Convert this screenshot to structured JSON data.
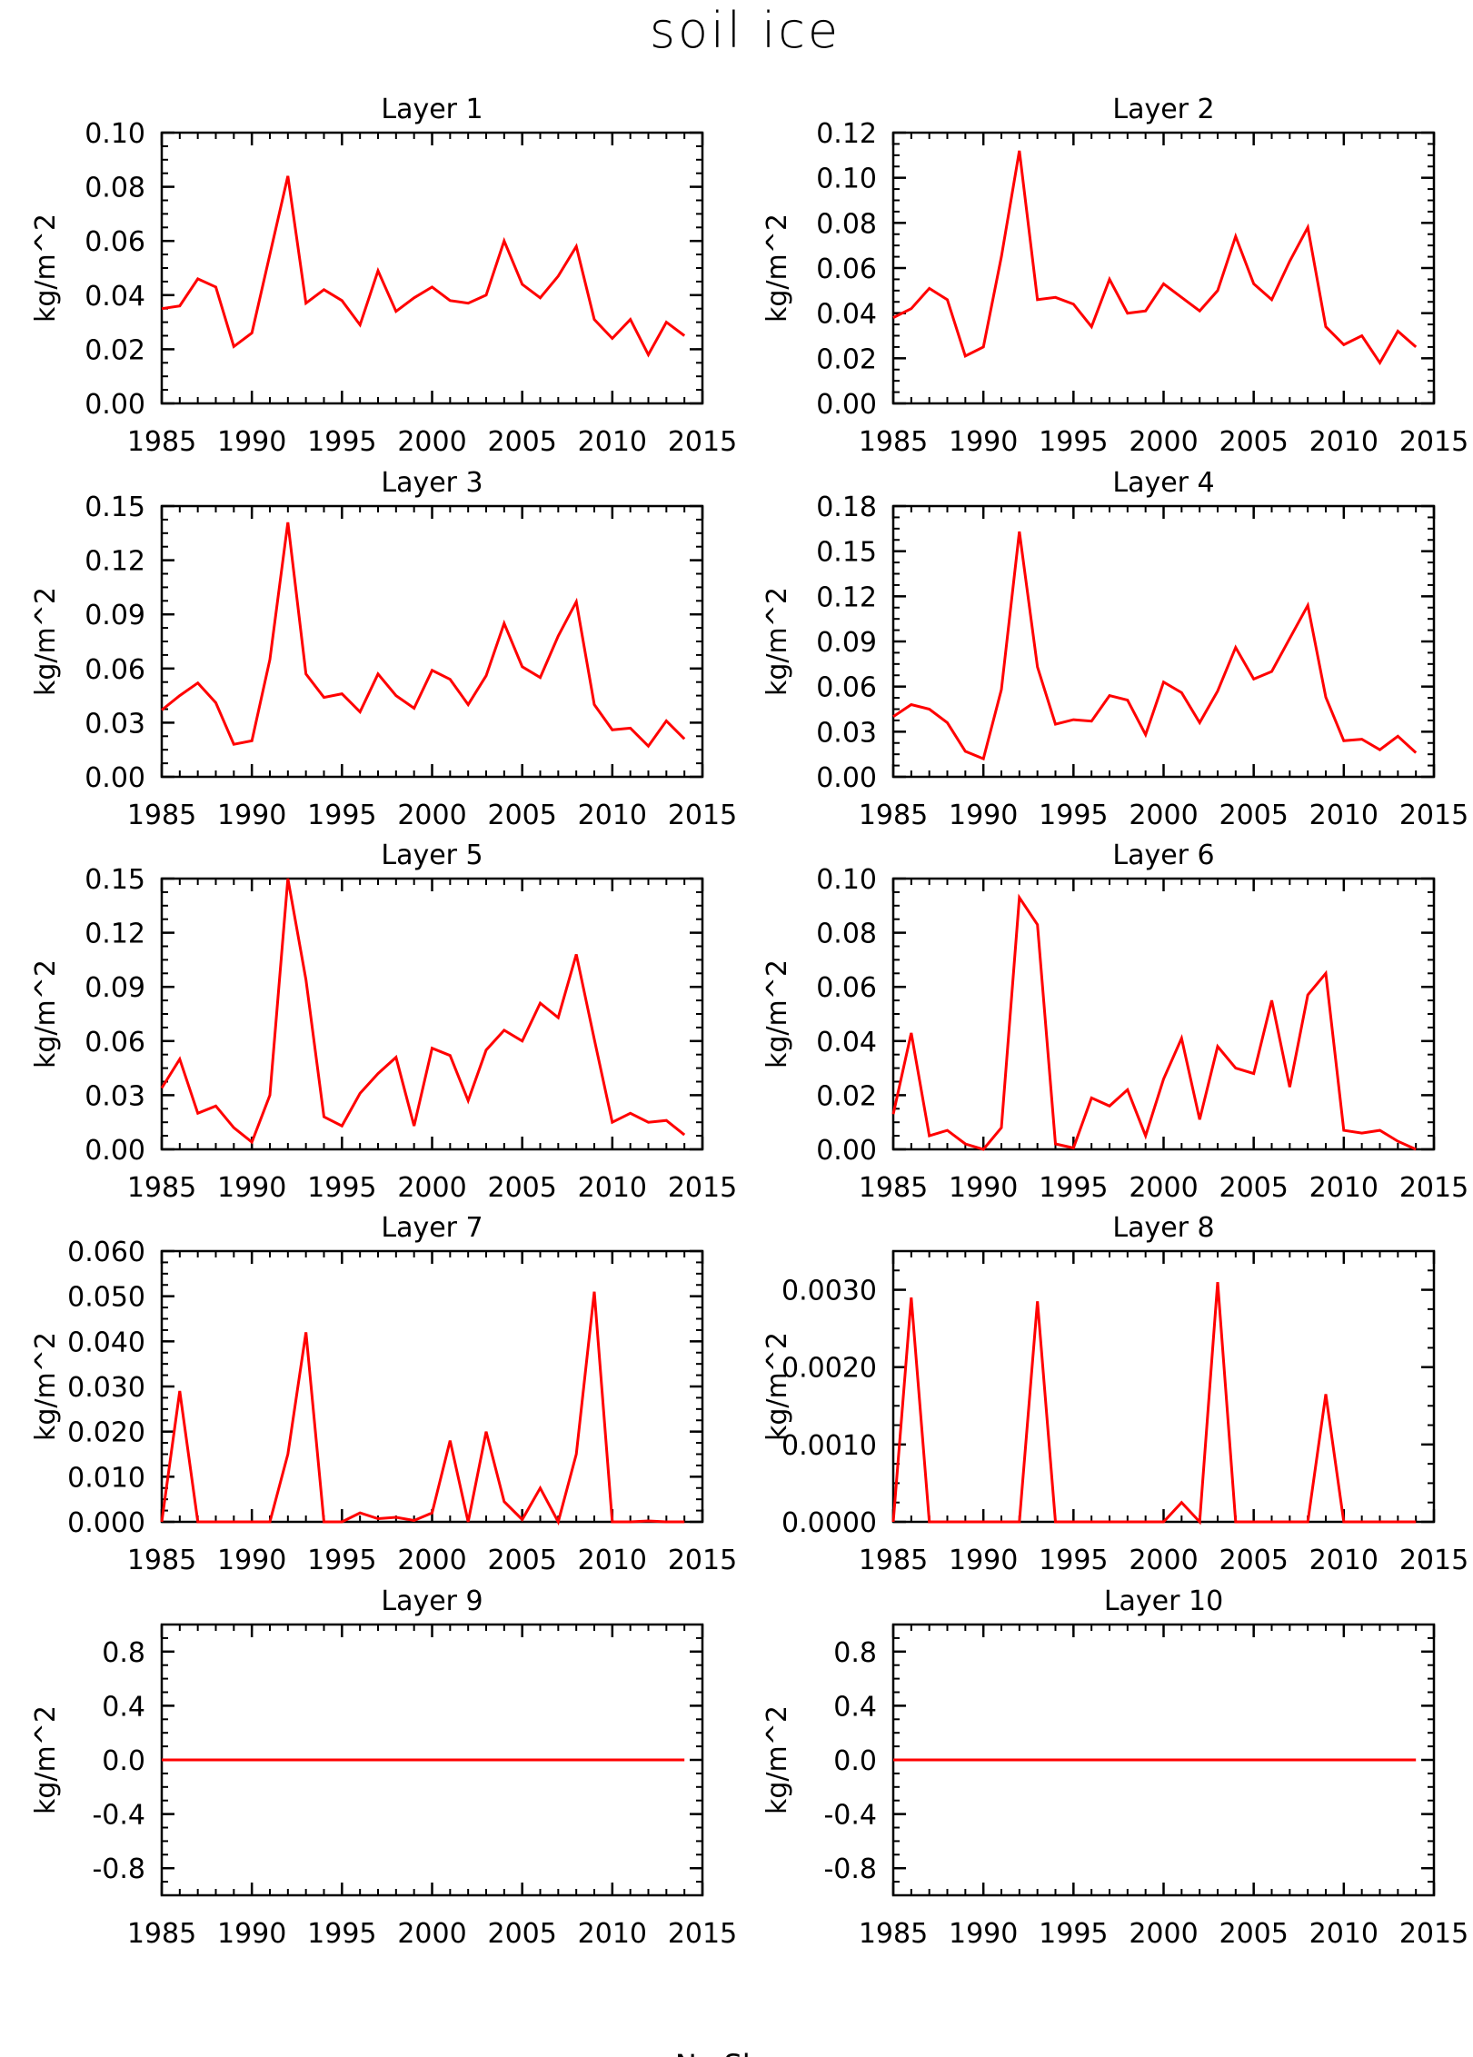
{
  "title": "soil ice",
  "footer": "No Sh",
  "colors": {
    "line": "#ff0000",
    "axis": "#000000",
    "background": "#ffffff"
  },
  "chart_data": [
    {
      "type": "line",
      "title": "Layer 1",
      "ylabel": "kg/m^2",
      "xlim": [
        1985,
        2015
      ],
      "xticks": [
        1985,
        1990,
        1995,
        2000,
        2005,
        2010,
        2015
      ],
      "ylim": [
        0,
        0.1
      ],
      "yticks": [
        "0.00",
        "0.02",
        "0.04",
        "0.06",
        "0.08",
        "0.10"
      ],
      "yminor": 0.005,
      "x": [
        1985,
        1986,
        1987,
        1988,
        1989,
        1990,
        1991,
        1992,
        1993,
        1994,
        1995,
        1996,
        1997,
        1998,
        1999,
        2000,
        2001,
        2002,
        2003,
        2004,
        2005,
        2006,
        2007,
        2008,
        2009,
        2010,
        2011,
        2012,
        2013,
        2014
      ],
      "values": [
        0.035,
        0.036,
        0.046,
        0.043,
        0.021,
        0.026,
        0.055,
        0.084,
        0.037,
        0.042,
        0.038,
        0.029,
        0.049,
        0.034,
        0.039,
        0.043,
        0.038,
        0.037,
        0.04,
        0.06,
        0.044,
        0.039,
        0.047,
        0.058,
        0.031,
        0.024,
        0.031,
        0.018,
        0.03,
        0.025
      ]
    },
    {
      "type": "line",
      "title": "Layer 2",
      "ylabel": "kg/m^2",
      "xlim": [
        1985,
        2015
      ],
      "xticks": [
        1985,
        1990,
        1995,
        2000,
        2005,
        2010,
        2015
      ],
      "ylim": [
        0,
        0.12
      ],
      "yticks": [
        "0.00",
        "0.02",
        "0.04",
        "0.06",
        "0.08",
        "0.10",
        "0.12"
      ],
      "yminor": 0.005,
      "x": [
        1985,
        1986,
        1987,
        1988,
        1989,
        1990,
        1991,
        1992,
        1993,
        1994,
        1995,
        1996,
        1997,
        1998,
        1999,
        2000,
        2001,
        2002,
        2003,
        2004,
        2005,
        2006,
        2007,
        2008,
        2009,
        2010,
        2011,
        2012,
        2013,
        2014
      ],
      "values": [
        0.038,
        0.042,
        0.051,
        0.046,
        0.021,
        0.025,
        0.065,
        0.112,
        0.046,
        0.047,
        0.044,
        0.034,
        0.055,
        0.04,
        0.041,
        0.053,
        0.047,
        0.041,
        0.05,
        0.074,
        0.053,
        0.046,
        0.063,
        0.078,
        0.034,
        0.026,
        0.03,
        0.018,
        0.032,
        0.025
      ]
    },
    {
      "type": "line",
      "title": "Layer 3",
      "ylabel": "kg/m^2",
      "xlim": [
        1985,
        2015
      ],
      "xticks": [
        1985,
        1990,
        1995,
        2000,
        2005,
        2010,
        2015
      ],
      "ylim": [
        0,
        0.15
      ],
      "yticks": [
        "0.00",
        "0.03",
        "0.06",
        "0.09",
        "0.12",
        "0.15"
      ],
      "yminor": 0.0075,
      "x": [
        1985,
        1986,
        1987,
        1988,
        1989,
        1990,
        1991,
        1992,
        1993,
        1994,
        1995,
        1996,
        1997,
        1998,
        1999,
        2000,
        2001,
        2002,
        2003,
        2004,
        2005,
        2006,
        2007,
        2008,
        2009,
        2010,
        2011,
        2012,
        2013,
        2014
      ],
      "values": [
        0.037,
        0.045,
        0.052,
        0.041,
        0.018,
        0.02,
        0.065,
        0.141,
        0.057,
        0.044,
        0.046,
        0.036,
        0.057,
        0.045,
        0.038,
        0.059,
        0.054,
        0.04,
        0.056,
        0.085,
        0.061,
        0.055,
        0.078,
        0.097,
        0.04,
        0.026,
        0.027,
        0.017,
        0.031,
        0.021
      ]
    },
    {
      "type": "line",
      "title": "Layer 4",
      "ylabel": "kg/m^2",
      "xlim": [
        1985,
        2015
      ],
      "xticks": [
        1985,
        1990,
        1995,
        2000,
        2005,
        2010,
        2015
      ],
      "ylim": [
        0,
        0.18
      ],
      "yticks": [
        "0.00",
        "0.03",
        "0.06",
        "0.09",
        "0.12",
        "0.15",
        "0.18"
      ],
      "yminor": 0.0075,
      "x": [
        1985,
        1986,
        1987,
        1988,
        1989,
        1990,
        1991,
        1992,
        1993,
        1994,
        1995,
        1996,
        1997,
        1998,
        1999,
        2000,
        2001,
        2002,
        2003,
        2004,
        2005,
        2006,
        2007,
        2008,
        2009,
        2010,
        2011,
        2012,
        2013,
        2014
      ],
      "values": [
        0.04,
        0.048,
        0.045,
        0.036,
        0.017,
        0.012,
        0.058,
        0.163,
        0.073,
        0.035,
        0.038,
        0.037,
        0.054,
        0.051,
        0.028,
        0.063,
        0.056,
        0.036,
        0.057,
        0.086,
        0.065,
        0.07,
        0.092,
        0.114,
        0.053,
        0.024,
        0.025,
        0.018,
        0.027,
        0.016
      ]
    },
    {
      "type": "line",
      "title": "Layer 5",
      "ylabel": "kg/m^2",
      "xlim": [
        1985,
        2015
      ],
      "xticks": [
        1985,
        1990,
        1995,
        2000,
        2005,
        2010,
        2015
      ],
      "ylim": [
        0,
        0.15
      ],
      "yticks": [
        "0.00",
        "0.03",
        "0.06",
        "0.09",
        "0.12",
        "0.15"
      ],
      "yminor": 0.0075,
      "x": [
        1985,
        1986,
        1987,
        1988,
        1989,
        1990,
        1991,
        1992,
        1993,
        1994,
        1995,
        1996,
        1997,
        1998,
        1999,
        2000,
        2001,
        2002,
        2003,
        2004,
        2005,
        2006,
        2007,
        2008,
        2009,
        2010,
        2011,
        2012,
        2013,
        2014
      ],
      "values": [
        0.034,
        0.05,
        0.02,
        0.024,
        0.012,
        0.004,
        0.03,
        0.15,
        0.094,
        0.018,
        0.013,
        0.031,
        0.042,
        0.051,
        0.013,
        0.056,
        0.052,
        0.027,
        0.055,
        0.066,
        0.06,
        0.081,
        0.073,
        0.108,
        0.061,
        0.015,
        0.02,
        0.015,
        0.016,
        0.008
      ]
    },
    {
      "type": "line",
      "title": "Layer 6",
      "ylabel": "kg/m^2",
      "xlim": [
        1985,
        2015
      ],
      "xticks": [
        1985,
        1990,
        1995,
        2000,
        2005,
        2010,
        2015
      ],
      "ylim": [
        0,
        0.1
      ],
      "yticks": [
        "0.00",
        "0.02",
        "0.04",
        "0.06",
        "0.08",
        "0.10"
      ],
      "yminor": 0.005,
      "x": [
        1985,
        1986,
        1987,
        1988,
        1989,
        1990,
        1991,
        1992,
        1993,
        1994,
        1995,
        1996,
        1997,
        1998,
        1999,
        2000,
        2001,
        2002,
        2003,
        2004,
        2005,
        2006,
        2007,
        2008,
        2009,
        2010,
        2011,
        2012,
        2013,
        2014
      ],
      "values": [
        0.013,
        0.043,
        0.005,
        0.007,
        0.002,
        0.0,
        0.008,
        0.093,
        0.083,
        0.002,
        0.0005,
        0.019,
        0.016,
        0.022,
        0.005,
        0.026,
        0.041,
        0.011,
        0.038,
        0.03,
        0.028,
        0.055,
        0.023,
        0.057,
        0.065,
        0.007,
        0.006,
        0.007,
        0.003,
        0.0
      ]
    },
    {
      "type": "line",
      "title": "Layer 7",
      "ylabel": "kg/m^2",
      "xlim": [
        1985,
        2015
      ],
      "xticks": [
        1985,
        1990,
        1995,
        2000,
        2005,
        2010,
        2015
      ],
      "ylim": [
        0,
        0.06
      ],
      "yticks": [
        "0.000",
        "0.010",
        "0.020",
        "0.030",
        "0.040",
        "0.050",
        "0.060"
      ],
      "yminor": 0.0025,
      "x": [
        1985,
        1986,
        1987,
        1988,
        1989,
        1990,
        1991,
        1992,
        1993,
        1994,
        1995,
        1996,
        1997,
        1998,
        1999,
        2000,
        2001,
        2002,
        2003,
        2004,
        2005,
        2006,
        2007,
        2008,
        2009,
        2010,
        2011,
        2012,
        2013,
        2014
      ],
      "values": [
        0.0,
        0.029,
        0.0,
        0.0,
        0.0,
        0.0,
        0.0,
        0.015,
        0.042,
        0.0,
        0.0,
        0.002,
        0.0007,
        0.001,
        0.0003,
        0.002,
        0.018,
        0.0,
        0.02,
        0.0045,
        0.0005,
        0.0075,
        0.0,
        0.015,
        0.051,
        0.0,
        0.0,
        0.0002,
        0.0,
        0.0
      ]
    },
    {
      "type": "line",
      "title": "Layer 8",
      "ylabel": "kg/m^2",
      "xlim": [
        1985,
        2015
      ],
      "xticks": [
        1985,
        1990,
        1995,
        2000,
        2005,
        2010,
        2015
      ],
      "ylim": [
        0,
        0.0035
      ],
      "yticks": [
        "0.0000",
        "0.0010",
        "0.0020",
        "0.0030"
      ],
      "yminor": 0.00025,
      "x": [
        1985,
        1986,
        1987,
        1988,
        1989,
        1990,
        1991,
        1992,
        1993,
        1994,
        1995,
        1996,
        1997,
        1998,
        1999,
        2000,
        2001,
        2002,
        2003,
        2004,
        2005,
        2006,
        2007,
        2008,
        2009,
        2010,
        2011,
        2012,
        2013,
        2014
      ],
      "values": [
        0.0,
        0.0029,
        0.0,
        0.0,
        0.0,
        0.0,
        0.0,
        0.0,
        0.00285,
        0.0,
        0.0,
        0.0,
        0.0,
        0.0,
        0.0,
        0.0,
        0.00025,
        0.0,
        0.0031,
        0.0,
        0.0,
        0.0,
        0.0,
        0.0,
        0.00165,
        0.0,
        0.0,
        0.0,
        0.0,
        0.0
      ]
    },
    {
      "type": "line",
      "title": "Layer 9",
      "ylabel": "kg/m^2",
      "xlim": [
        1985,
        2015
      ],
      "xticks": [
        1985,
        1990,
        1995,
        2000,
        2005,
        2010,
        2015
      ],
      "ylim": [
        -1.0,
        1.0
      ],
      "yticks": [
        "-0.8",
        "-0.4",
        "0.0",
        "0.4",
        "0.8"
      ],
      "yminor": 0.1,
      "x": [
        1985,
        1986,
        1987,
        1988,
        1989,
        1990,
        1991,
        1992,
        1993,
        1994,
        1995,
        1996,
        1997,
        1998,
        1999,
        2000,
        2001,
        2002,
        2003,
        2004,
        2005,
        2006,
        2007,
        2008,
        2009,
        2010,
        2011,
        2012,
        2013,
        2014
      ],
      "values": [
        0,
        0,
        0,
        0,
        0,
        0,
        0,
        0,
        0,
        0,
        0,
        0,
        0,
        0,
        0,
        0,
        0,
        0,
        0,
        0,
        0,
        0,
        0,
        0,
        0,
        0,
        0,
        0,
        0,
        0
      ]
    },
    {
      "type": "line",
      "title": "Layer 10",
      "ylabel": "kg/m^2",
      "xlim": [
        1985,
        2015
      ],
      "xticks": [
        1985,
        1990,
        1995,
        2000,
        2005,
        2010,
        2015
      ],
      "ylim": [
        -1.0,
        1.0
      ],
      "yticks": [
        "-0.8",
        "-0.4",
        "0.0",
        "0.4",
        "0.8"
      ],
      "yminor": 0.1,
      "x": [
        1985,
        1986,
        1987,
        1988,
        1989,
        1990,
        1991,
        1992,
        1993,
        1994,
        1995,
        1996,
        1997,
        1998,
        1999,
        2000,
        2001,
        2002,
        2003,
        2004,
        2005,
        2006,
        2007,
        2008,
        2009,
        2010,
        2011,
        2012,
        2013,
        2014
      ],
      "values": [
        0,
        0,
        0,
        0,
        0,
        0,
        0,
        0,
        0,
        0,
        0,
        0,
        0,
        0,
        0,
        0,
        0,
        0,
        0,
        0,
        0,
        0,
        0,
        0,
        0,
        0,
        0,
        0,
        0,
        0
      ]
    }
  ]
}
